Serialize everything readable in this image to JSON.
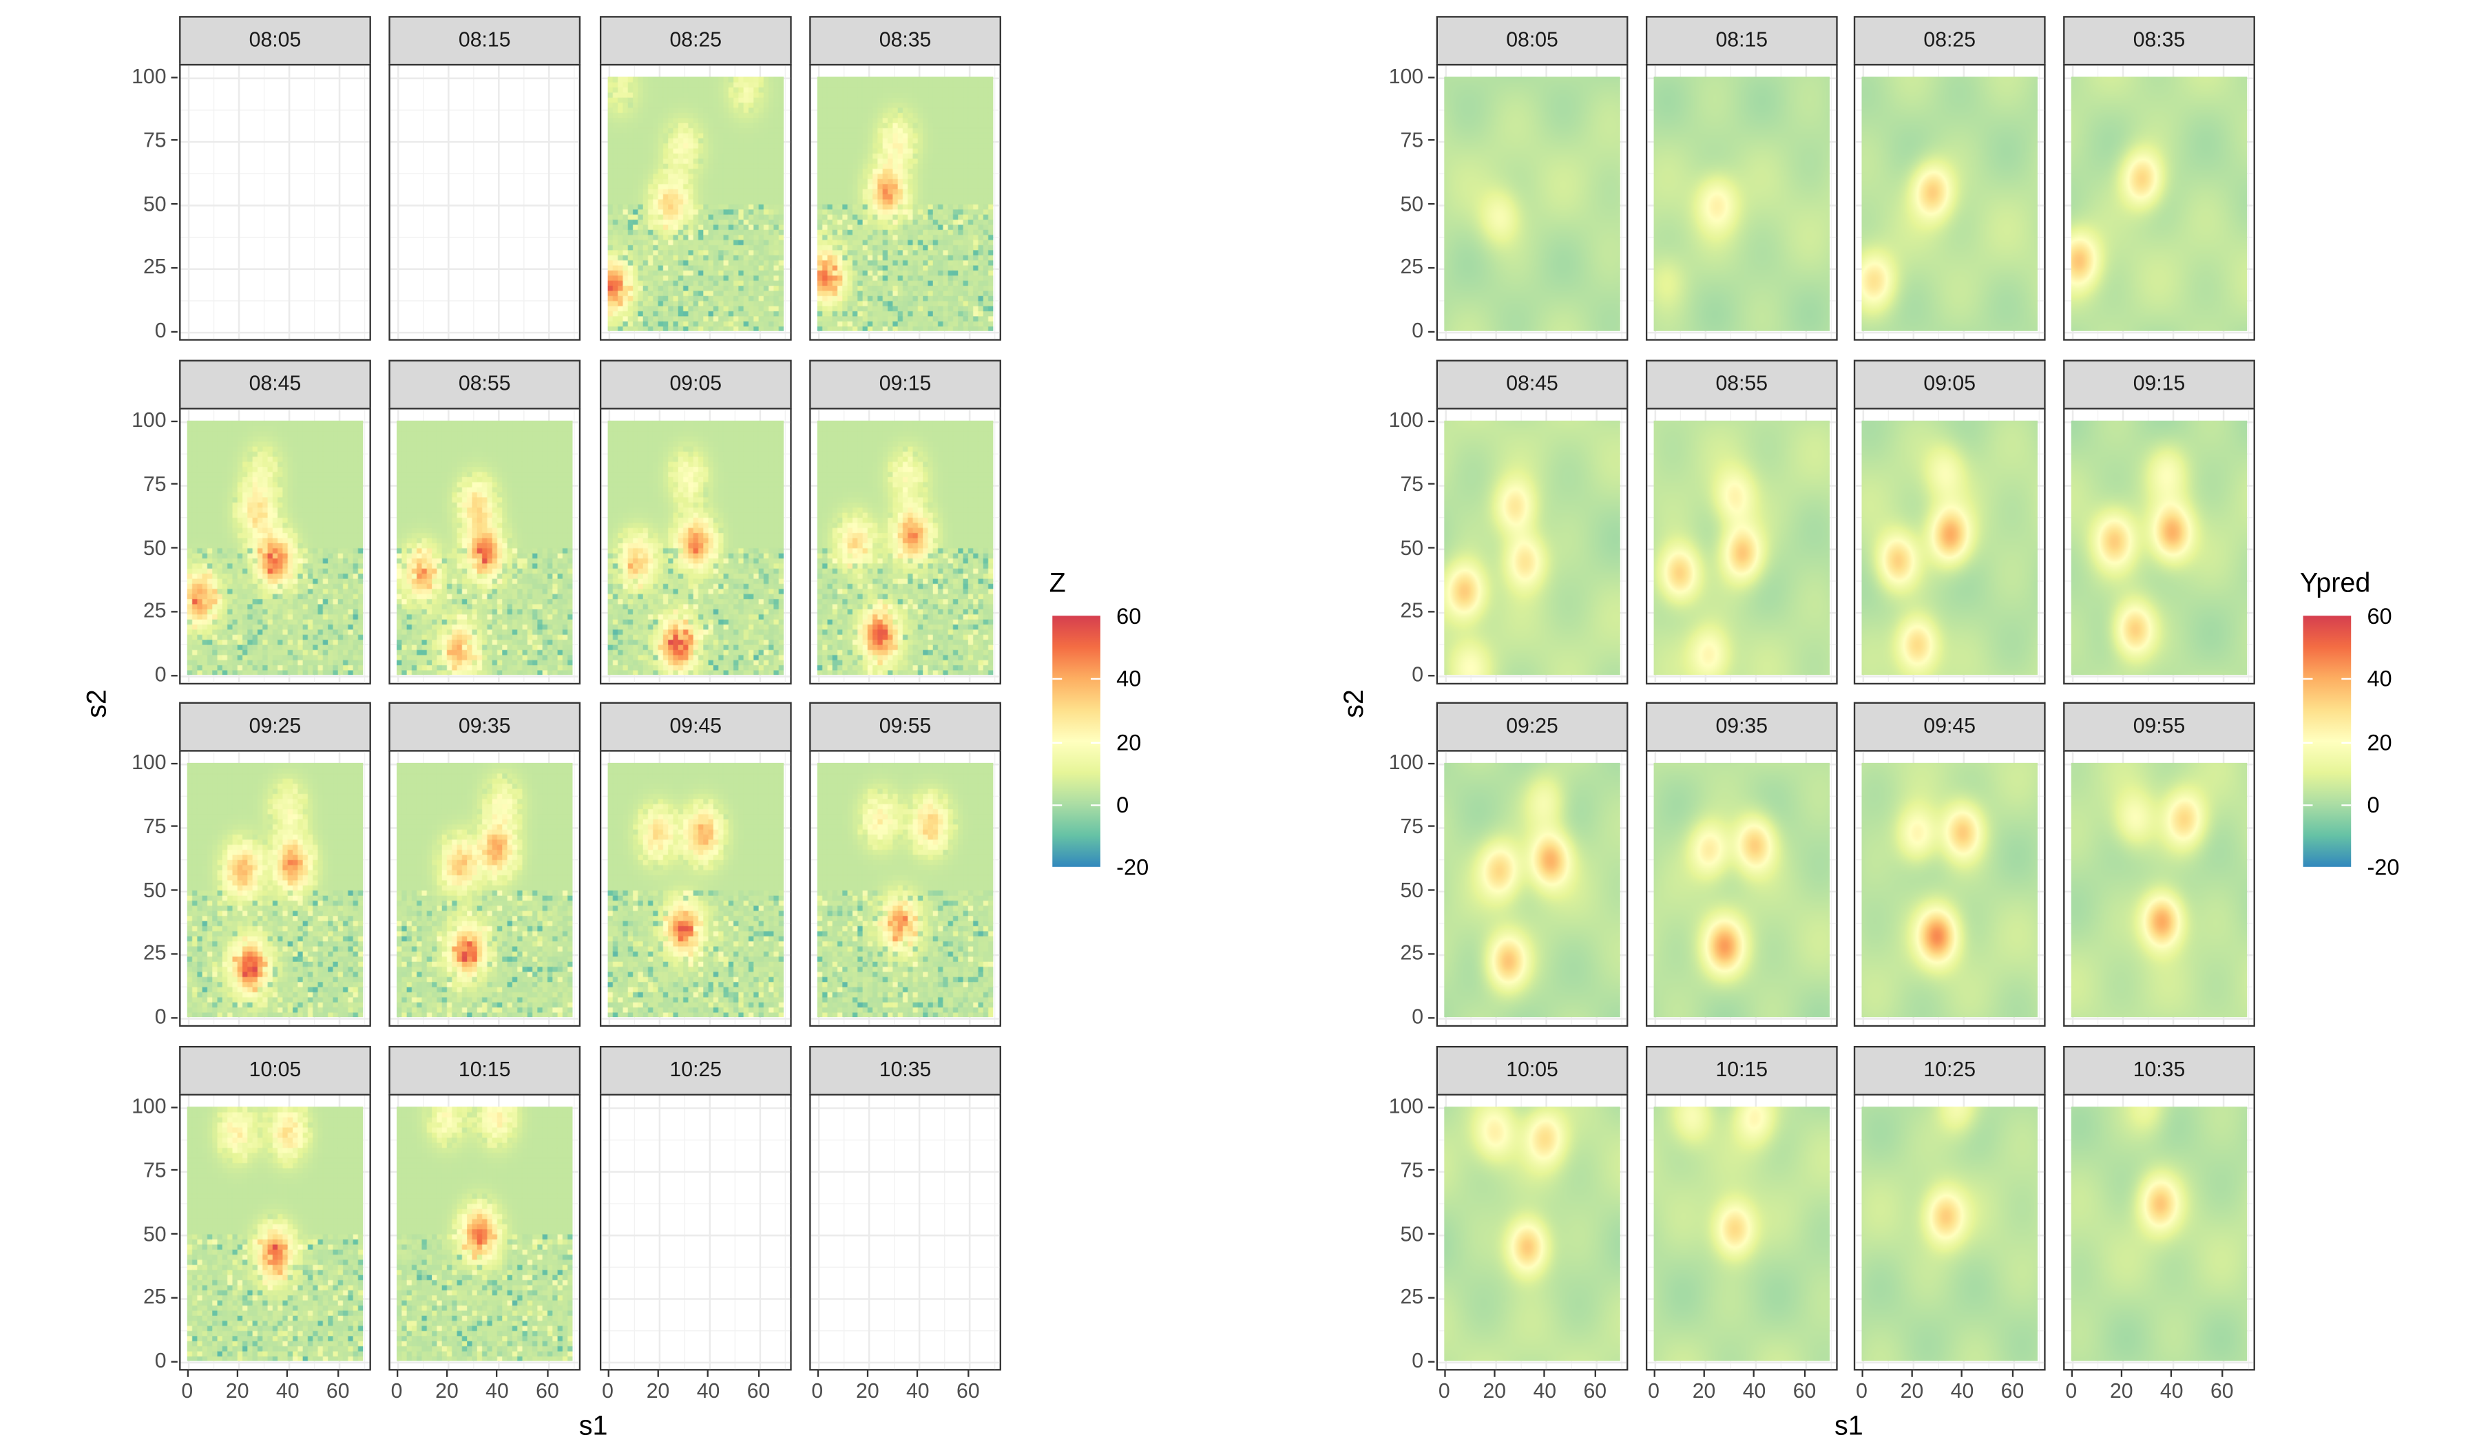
{
  "chart_data": [
    {
      "type": "heatmap",
      "title": "",
      "xlabel": "s1",
      "ylabel": "s2",
      "xlim": [
        0,
        70
      ],
      "ylim": [
        0,
        100
      ],
      "x_ticks": [
        0,
        20,
        40,
        60
      ],
      "y_ticks": [
        0,
        25,
        50,
        75,
        100
      ],
      "grid": true,
      "legend": {
        "title": "Z",
        "placement": "right",
        "range": [
          -20,
          60
        ],
        "ticks": [
          60,
          40,
          20,
          0,
          -20
        ]
      },
      "palette": [
        "#3288bd",
        "#66c2a5",
        "#abdda4",
        "#e6f598",
        "#ffffbf",
        "#fee08b",
        "#fdae61",
        "#f46d43",
        "#d53e4f"
      ],
      "style": "noisy-tiles",
      "facets": [
        {
          "label": "08:05",
          "has_data": false,
          "hotspots": []
        },
        {
          "label": "08:15",
          "has_data": false,
          "hotspots": []
        },
        {
          "label": "08:25",
          "has_data": true,
          "hotspots": [
            [
              25,
              50,
              28
            ],
            [
              30,
              72,
              14
            ],
            [
              2,
              18,
              45
            ],
            [
              55,
              95,
              10
            ],
            [
              5,
              95,
              8
            ]
          ]
        },
        {
          "label": "08:35",
          "has_data": true,
          "hotspots": [
            [
              28,
              55,
              38
            ],
            [
              32,
              75,
              18
            ],
            [
              3,
              22,
              45
            ]
          ]
        },
        {
          "label": "08:45",
          "has_data": true,
          "hotspots": [
            [
              35,
              45,
              45
            ],
            [
              28,
              64,
              25
            ],
            [
              30,
              80,
              12
            ],
            [
              5,
              30,
              40
            ]
          ]
        },
        {
          "label": "08:55",
          "has_data": true,
          "hotspots": [
            [
              35,
              48,
              45
            ],
            [
              32,
              67,
              25
            ],
            [
              10,
              40,
              35
            ],
            [
              25,
              10,
              35
            ]
          ]
        },
        {
          "label": "09:05",
          "has_data": true,
          "hotspots": [
            [
              35,
              52,
              40
            ],
            [
              32,
              78,
              15
            ],
            [
              12,
              45,
              30
            ],
            [
              28,
              12,
              50
            ]
          ]
        },
        {
          "label": "09:15",
          "has_data": true,
          "hotspots": [
            [
              38,
              55,
              40
            ],
            [
              36,
              78,
              15
            ],
            [
              15,
              52,
              25
            ],
            [
              25,
              16,
              50
            ]
          ]
        },
        {
          "label": "09:25",
          "has_data": true,
          "hotspots": [
            [
              42,
              60,
              40
            ],
            [
              40,
              82,
              15
            ],
            [
              22,
              58,
              35
            ],
            [
              25,
              20,
              50
            ]
          ]
        },
        {
          "label": "09:35",
          "has_data": true,
          "hotspots": [
            [
              40,
              66,
              35
            ],
            [
              42,
              84,
              15
            ],
            [
              25,
              60,
              30
            ],
            [
              28,
              26,
              45
            ]
          ]
        },
        {
          "label": "09:45",
          "has_data": true,
          "hotspots": [
            [
              38,
              72,
              35
            ],
            [
              20,
              72,
              25
            ],
            [
              30,
              35,
              45
            ]
          ]
        },
        {
          "label": "09:55",
          "has_data": true,
          "hotspots": [
            [
              45,
              76,
              30
            ],
            [
              25,
              78,
              20
            ],
            [
              33,
              37,
              40
            ]
          ]
        },
        {
          "label": "10:05",
          "has_data": true,
          "hotspots": [
            [
              40,
              90,
              25
            ],
            [
              20,
              90,
              20
            ],
            [
              35,
              42,
              45
            ]
          ]
        },
        {
          "label": "10:15",
          "has_data": true,
          "hotspots": [
            [
              40,
              96,
              20
            ],
            [
              20,
              96,
              15
            ],
            [
              33,
              50,
              45
            ]
          ]
        },
        {
          "label": "10:25",
          "has_data": false,
          "hotspots": []
        },
        {
          "label": "10:35",
          "has_data": false,
          "hotspots": []
        }
      ]
    },
    {
      "type": "heatmap",
      "title": "",
      "xlabel": "s1",
      "ylabel": "s2",
      "xlim": [
        0,
        70
      ],
      "ylim": [
        0,
        100
      ],
      "x_ticks": [
        0,
        20,
        40,
        60
      ],
      "y_ticks": [
        0,
        25,
        50,
        75,
        100
      ],
      "grid": true,
      "legend": {
        "title": "Ypred",
        "placement": "right",
        "range": [
          -20,
          60
        ],
        "ticks": [
          60,
          40,
          20,
          0,
          -20
        ]
      },
      "palette": [
        "#3288bd",
        "#66c2a5",
        "#abdda4",
        "#e6f598",
        "#ffffbf",
        "#fee08b",
        "#fdae61",
        "#f46d43",
        "#d53e4f"
      ],
      "style": "smooth",
      "facets": [
        {
          "label": "08:05",
          "has_data": true,
          "hotspots": [
            [
              22,
              45,
              14
            ]
          ]
        },
        {
          "label": "08:15",
          "has_data": true,
          "hotspots": [
            [
              25,
              50,
              20
            ],
            [
              5,
              20,
              8
            ]
          ]
        },
        {
          "label": "08:25",
          "has_data": true,
          "hotspots": [
            [
              28,
              55,
              30
            ],
            [
              5,
              20,
              24
            ]
          ]
        },
        {
          "label": "08:35",
          "has_data": true,
          "hotspots": [
            [
              28,
              60,
              30
            ],
            [
              3,
              28,
              30
            ]
          ]
        },
        {
          "label": "08:45",
          "has_data": true,
          "hotspots": [
            [
              28,
              66,
              25
            ],
            [
              32,
              45,
              27
            ],
            [
              8,
              33,
              32
            ],
            [
              10,
              3,
              14
            ]
          ]
        },
        {
          "label": "08:55",
          "has_data": true,
          "hotspots": [
            [
              35,
              48,
              33
            ],
            [
              32,
              70,
              20
            ],
            [
              10,
              40,
              32
            ],
            [
              22,
              8,
              20
            ]
          ]
        },
        {
          "label": "09:05",
          "has_data": true,
          "hotspots": [
            [
              35,
              55,
              36
            ],
            [
              33,
              80,
              14
            ],
            [
              14,
              45,
              30
            ],
            [
              22,
              12,
              30
            ]
          ]
        },
        {
          "label": "09:15",
          "has_data": true,
          "hotspots": [
            [
              40,
              56,
              35
            ],
            [
              38,
              80,
              14
            ],
            [
              17,
              53,
              28
            ],
            [
              25,
              18,
              32
            ]
          ]
        },
        {
          "label": "09:25",
          "has_data": true,
          "hotspots": [
            [
              42,
              62,
              35
            ],
            [
              40,
              85,
              14
            ],
            [
              22,
              58,
              27
            ],
            [
              25,
              22,
              32
            ]
          ]
        },
        {
          "label": "09:35",
          "has_data": true,
          "hotspots": [
            [
              40,
              68,
              31
            ],
            [
              22,
              66,
              24
            ],
            [
              28,
              28,
              36
            ]
          ]
        },
        {
          "label": "09:45",
          "has_data": true,
          "hotspots": [
            [
              40,
              73,
              31
            ],
            [
              22,
              72,
              22
            ],
            [
              30,
              32,
              40
            ]
          ]
        },
        {
          "label": "09:55",
          "has_data": true,
          "hotspots": [
            [
              45,
              78,
              27
            ],
            [
              25,
              78,
              16
            ],
            [
              36,
              38,
              40
            ]
          ]
        },
        {
          "label": "10:05",
          "has_data": true,
          "hotspots": [
            [
              40,
              88,
              25
            ],
            [
              20,
              90,
              20
            ],
            [
              33,
              45,
              35
            ]
          ]
        },
        {
          "label": "10:15",
          "has_data": true,
          "hotspots": [
            [
              40,
              96,
              20
            ],
            [
              15,
              96,
              15
            ],
            [
              32,
              52,
              30
            ]
          ]
        },
        {
          "label": "10:25",
          "has_data": true,
          "hotspots": [
            [
              38,
              100,
              15
            ],
            [
              33,
              57,
              30
            ]
          ]
        },
        {
          "label": "10:35",
          "has_data": true,
          "hotspots": [
            [
              35,
              62,
              30
            ],
            [
              30,
              100,
              10
            ]
          ]
        }
      ]
    }
  ]
}
